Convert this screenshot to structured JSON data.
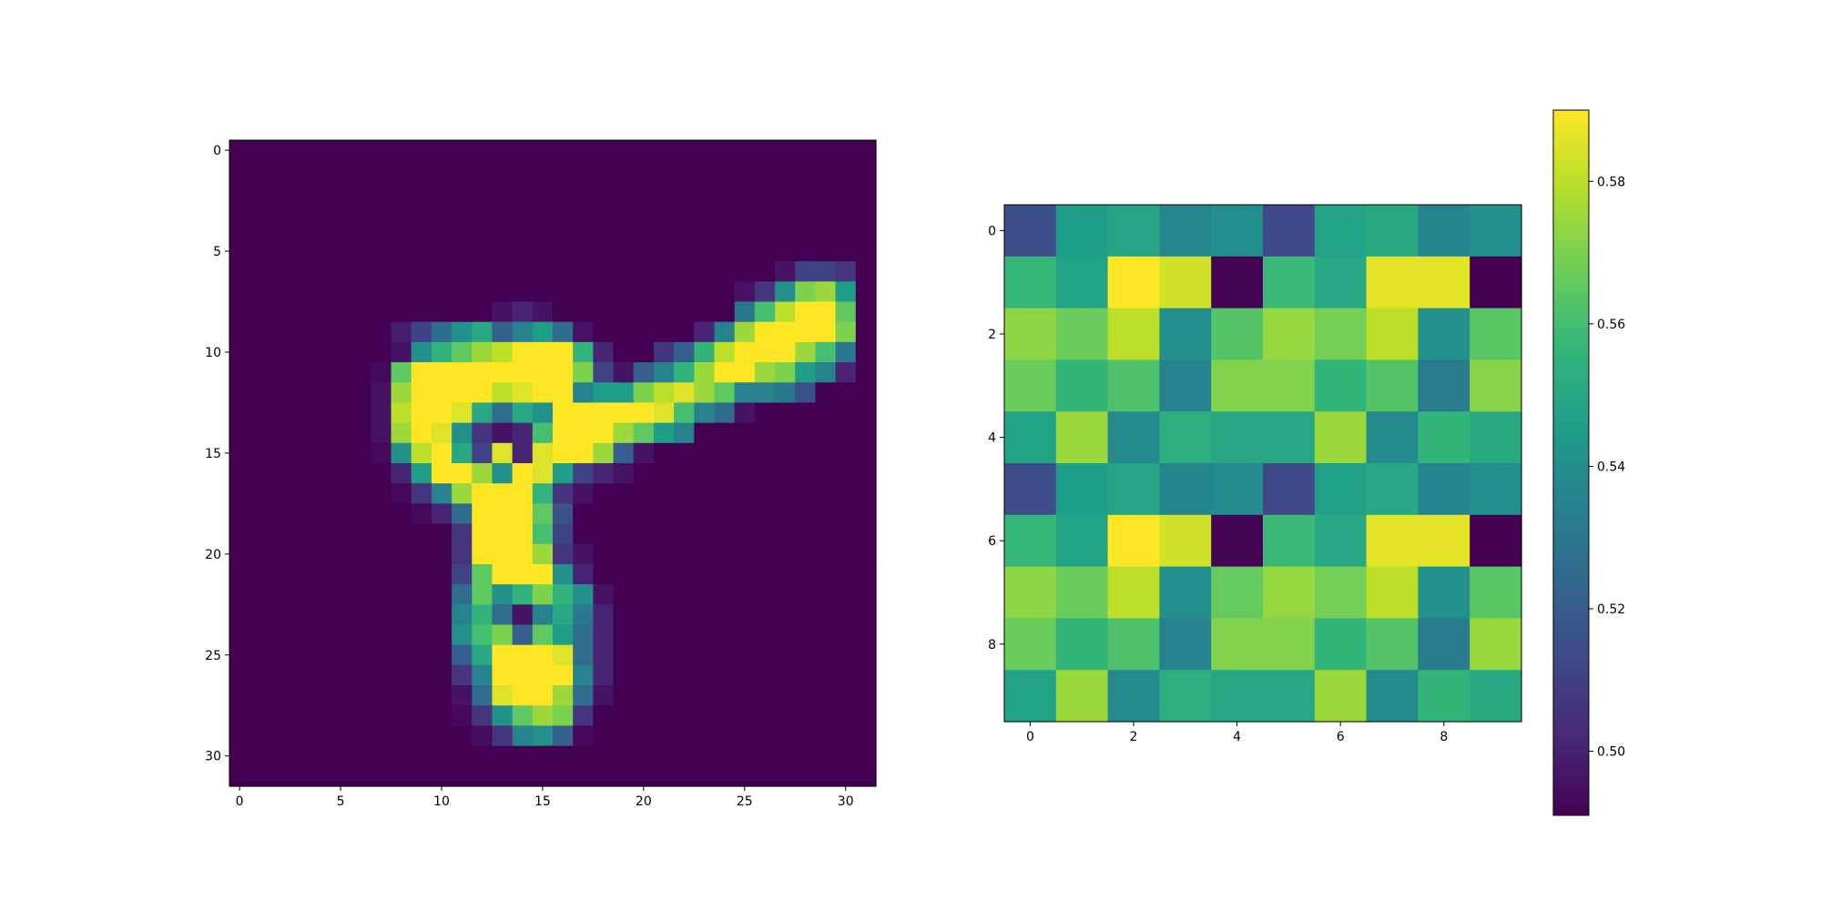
{
  "chart_data": [
    {
      "type": "heatmap",
      "title": "",
      "xlabel": "",
      "ylabel": "",
      "colormap": "viridis",
      "value_range": [
        0,
        1
      ],
      "rows": 32,
      "cols": 32,
      "x_ticks": [
        0,
        5,
        10,
        15,
        20,
        25,
        30
      ],
      "y_ticks": [
        0,
        5,
        10,
        15,
        20,
        25,
        30
      ],
      "x_tick_labels": [
        "0",
        "5",
        "10",
        "15",
        "20",
        "25",
        "30"
      ],
      "y_tick_labels": [
        "0",
        "5",
        "10",
        "15",
        "20",
        "25",
        "30"
      ],
      "values": [
        [
          0,
          0,
          0,
          0,
          0,
          0,
          0,
          0,
          0,
          0,
          0,
          0,
          0,
          0,
          0,
          0,
          0,
          0,
          0,
          0,
          0,
          0,
          0,
          0,
          0,
          0,
          0,
          0,
          0,
          0,
          0,
          0
        ],
        [
          0,
          0,
          0,
          0,
          0,
          0,
          0,
          0,
          0,
          0,
          0,
          0,
          0,
          0,
          0,
          0,
          0,
          0,
          0,
          0,
          0,
          0,
          0,
          0,
          0,
          0,
          0,
          0,
          0,
          0,
          0,
          0
        ],
        [
          0,
          0,
          0,
          0,
          0,
          0,
          0,
          0,
          0,
          0,
          0,
          0,
          0,
          0,
          0,
          0,
          0,
          0,
          0,
          0,
          0,
          0,
          0,
          0,
          0,
          0,
          0,
          0,
          0,
          0,
          0,
          0
        ],
        [
          0,
          0,
          0,
          0,
          0,
          0,
          0,
          0,
          0,
          0,
          0,
          0,
          0,
          0,
          0,
          0,
          0,
          0,
          0,
          0,
          0,
          0,
          0,
          0,
          0,
          0,
          0,
          0,
          0,
          0,
          0,
          0
        ],
        [
          0,
          0,
          0,
          0,
          0,
          0,
          0,
          0,
          0,
          0,
          0,
          0,
          0,
          0,
          0,
          0,
          0,
          0,
          0,
          0,
          0,
          0,
          0,
          0,
          0,
          0,
          0,
          0,
          0,
          0,
          0,
          0
        ],
        [
          0,
          0,
          0,
          0,
          0,
          0,
          0,
          0,
          0,
          0,
          0,
          0,
          0,
          0,
          0,
          0,
          0,
          0,
          0,
          0,
          0,
          0,
          0,
          0,
          0,
          0,
          0,
          0,
          0,
          0,
          0,
          0
        ],
        [
          0,
          0,
          0,
          0,
          0,
          0,
          0,
          0,
          0,
          0,
          0,
          0,
          0,
          0,
          0,
          0,
          0,
          0,
          0,
          0,
          0,
          0,
          0,
          0,
          0,
          0,
          0,
          0.05,
          0.2,
          0.2,
          0.15,
          0
        ],
        [
          0,
          0,
          0,
          0,
          0,
          0,
          0,
          0,
          0,
          0,
          0,
          0,
          0,
          0,
          0,
          0,
          0,
          0,
          0,
          0,
          0,
          0,
          0,
          0,
          0,
          0.05,
          0.15,
          0.5,
          0.8,
          0.85,
          0.55,
          0
        ],
        [
          0,
          0,
          0,
          0,
          0,
          0,
          0,
          0,
          0,
          0,
          0,
          0,
          0,
          0.05,
          0.1,
          0.05,
          0,
          0,
          0,
          0,
          0,
          0,
          0,
          0,
          0,
          0.4,
          0.7,
          0.9,
          1,
          1,
          0.75,
          0
        ],
        [
          0,
          0,
          0,
          0,
          0,
          0,
          0,
          0,
          0.08,
          0.2,
          0.35,
          0.5,
          0.6,
          0.3,
          0.45,
          0.55,
          0.35,
          0.05,
          0,
          0,
          0,
          0,
          0,
          0.1,
          0.45,
          0.85,
          1,
          1,
          1,
          1,
          0.8,
          0
        ],
        [
          0,
          0,
          0,
          0,
          0,
          0,
          0,
          0,
          0.05,
          0.5,
          0.65,
          0.75,
          0.85,
          0.9,
          1,
          1,
          1,
          0.65,
          0.1,
          0,
          0,
          0.15,
          0.3,
          0.65,
          0.9,
          1,
          1,
          1,
          0.85,
          0.7,
          0.4,
          0
        ],
        [
          0,
          0,
          0,
          0,
          0,
          0,
          0,
          0.02,
          0.75,
          1,
          1,
          1,
          1,
          1,
          1,
          1,
          1,
          0.8,
          0.2,
          0.05,
          0.3,
          0.45,
          0.65,
          0.85,
          1,
          1,
          0.85,
          0.8,
          0.55,
          0.45,
          0.1,
          0
        ],
        [
          0,
          0,
          0,
          0,
          0,
          0,
          0,
          0.05,
          0.85,
          1,
          1,
          1,
          1,
          0.9,
          0.95,
          1,
          1,
          0.45,
          0.55,
          0.55,
          0.8,
          0.9,
          0.95,
          0.85,
          0.75,
          0.45,
          0.45,
          0.4,
          0.25,
          0,
          0,
          0
        ],
        [
          0,
          0,
          0,
          0,
          0,
          0,
          0,
          0.05,
          0.9,
          1,
          1,
          0.95,
          0.6,
          0.35,
          0.6,
          0.5,
          1,
          1,
          1,
          1,
          1,
          0.95,
          0.7,
          0.45,
          0.35,
          0.05,
          0,
          0,
          0,
          0,
          0,
          0
        ],
        [
          0,
          0,
          0,
          0,
          0,
          0,
          0,
          0.05,
          0.85,
          1,
          0.95,
          0.5,
          0.15,
          0.05,
          0.1,
          0.7,
          1,
          1,
          1,
          0.85,
          0.75,
          0.55,
          0.45,
          0,
          0,
          0,
          0,
          0,
          0,
          0,
          0,
          0
        ],
        [
          0,
          0,
          0,
          0,
          0,
          0,
          0,
          0.02,
          0.5,
          0.9,
          1,
          0.6,
          0.2,
          0.95,
          0.1,
          0.95,
          1,
          1,
          0.85,
          0.3,
          0.05,
          0,
          0,
          0,
          0,
          0,
          0,
          0,
          0,
          0,
          0,
          0
        ],
        [
          0,
          0,
          0,
          0,
          0,
          0,
          0,
          0,
          0.1,
          0.55,
          1,
          1,
          0.85,
          0.5,
          1,
          0.95,
          0.55,
          0.2,
          0.1,
          0.05,
          0,
          0,
          0,
          0,
          0,
          0,
          0,
          0,
          0,
          0,
          0,
          0
        ],
        [
          0,
          0,
          0,
          0,
          0,
          0,
          0,
          0,
          0.02,
          0.15,
          0.45,
          0.85,
          1,
          1,
          1,
          0.65,
          0.15,
          0.05,
          0,
          0,
          0,
          0,
          0,
          0,
          0,
          0,
          0,
          0,
          0,
          0,
          0,
          0
        ],
        [
          0,
          0,
          0,
          0,
          0,
          0,
          0,
          0,
          0,
          0.02,
          0.1,
          0.35,
          1,
          1,
          1,
          0.75,
          0.25,
          0,
          0,
          0,
          0,
          0,
          0,
          0,
          0,
          0,
          0,
          0,
          0,
          0,
          0,
          0
        ],
        [
          0,
          0,
          0,
          0,
          0,
          0,
          0,
          0,
          0,
          0,
          0,
          0.15,
          1,
          1,
          1,
          0.7,
          0.2,
          0,
          0,
          0,
          0,
          0,
          0,
          0,
          0,
          0,
          0,
          0,
          0,
          0,
          0,
          0
        ],
        [
          0,
          0,
          0,
          0,
          0,
          0,
          0,
          0,
          0,
          0,
          0,
          0.15,
          1,
          1,
          1,
          0.85,
          0.15,
          0.05,
          0,
          0,
          0,
          0,
          0,
          0,
          0,
          0,
          0,
          0,
          0,
          0,
          0,
          0
        ],
        [
          0,
          0,
          0,
          0,
          0,
          0,
          0,
          0,
          0,
          0,
          0,
          0.2,
          0.75,
          1,
          1,
          1,
          0.5,
          0.1,
          0,
          0,
          0,
          0,
          0,
          0,
          0,
          0,
          0,
          0,
          0,
          0,
          0,
          0
        ],
        [
          0,
          0,
          0,
          0,
          0,
          0,
          0,
          0,
          0,
          0,
          0,
          0.35,
          0.75,
          0.5,
          0.65,
          0.8,
          0.65,
          0.5,
          0.05,
          0,
          0,
          0,
          0,
          0,
          0,
          0,
          0,
          0,
          0,
          0,
          0,
          0
        ],
        [
          0,
          0,
          0,
          0,
          0,
          0,
          0,
          0,
          0,
          0,
          0,
          0.45,
          0.65,
          0.35,
          0.05,
          0.45,
          0.6,
          0.4,
          0.1,
          0,
          0,
          0,
          0,
          0,
          0,
          0,
          0,
          0,
          0,
          0,
          0,
          0
        ],
        [
          0,
          0,
          0,
          0,
          0,
          0,
          0,
          0,
          0,
          0,
          0,
          0.5,
          0.7,
          0.8,
          0.3,
          0.75,
          0.55,
          0.35,
          0.1,
          0,
          0,
          0,
          0,
          0,
          0,
          0,
          0,
          0,
          0,
          0,
          0,
          0
        ],
        [
          0,
          0,
          0,
          0,
          0,
          0,
          0,
          0,
          0,
          0,
          0,
          0.3,
          0.6,
          1,
          1,
          1,
          0.95,
          0.35,
          0.1,
          0,
          0,
          0,
          0,
          0,
          0,
          0,
          0,
          0,
          0,
          0,
          0,
          0
        ],
        [
          0,
          0,
          0,
          0,
          0,
          0,
          0,
          0,
          0,
          0,
          0,
          0.15,
          0.45,
          1,
          1,
          1,
          1,
          0.45,
          0.1,
          0,
          0,
          0,
          0,
          0,
          0,
          0,
          0,
          0,
          0,
          0,
          0,
          0
        ],
        [
          0,
          0,
          0,
          0,
          0,
          0,
          0,
          0,
          0,
          0,
          0,
          0.05,
          0.35,
          0.95,
          1,
          1,
          0.85,
          0.35,
          0.05,
          0,
          0,
          0,
          0,
          0,
          0,
          0,
          0,
          0,
          0,
          0,
          0,
          0
        ],
        [
          0,
          0,
          0,
          0,
          0,
          0,
          0,
          0,
          0,
          0,
          0,
          0.02,
          0.15,
          0.5,
          0.75,
          0.85,
          0.8,
          0.15,
          0,
          0,
          0,
          0,
          0,
          0,
          0,
          0,
          0,
          0,
          0,
          0,
          0,
          0
        ],
        [
          0,
          0,
          0,
          0,
          0,
          0,
          0,
          0,
          0,
          0,
          0,
          0,
          0.03,
          0.15,
          0.45,
          0.5,
          0.3,
          0.02,
          0,
          0,
          0,
          0,
          0,
          0,
          0,
          0,
          0,
          0,
          0,
          0,
          0,
          0
        ],
        [
          0,
          0,
          0,
          0,
          0,
          0,
          0,
          0,
          0,
          0,
          0,
          0,
          0,
          0,
          0,
          0,
          0,
          0,
          0,
          0,
          0,
          0,
          0,
          0,
          0,
          0,
          0,
          0,
          0,
          0,
          0,
          0
        ],
        [
          0,
          0,
          0,
          0,
          0,
          0,
          0,
          0,
          0,
          0,
          0,
          0,
          0,
          0,
          0,
          0,
          0,
          0,
          0,
          0,
          0,
          0,
          0,
          0,
          0,
          0,
          0,
          0,
          0,
          0,
          0,
          0
        ]
      ]
    },
    {
      "type": "heatmap",
      "title": "",
      "xlabel": "",
      "ylabel": "",
      "colormap": "viridis",
      "value_range": [
        0.491,
        0.59
      ],
      "rows": 10,
      "cols": 10,
      "x_ticks": [
        0,
        2,
        4,
        6,
        8
      ],
      "y_ticks": [
        0,
        2,
        4,
        6,
        8
      ],
      "x_tick_labels": [
        "0",
        "2",
        "4",
        "6",
        "8"
      ],
      "y_tick_labels": [
        "0",
        "2",
        "4",
        "6",
        "8"
      ],
      "values": [
        [
          0.515,
          0.546,
          0.549,
          0.537,
          0.54,
          0.513,
          0.548,
          0.551,
          0.536,
          0.541
        ],
        [
          0.557,
          0.548,
          0.59,
          0.583,
          0.492,
          0.558,
          0.55,
          0.586,
          0.586,
          0.491
        ],
        [
          0.573,
          0.567,
          0.58,
          0.54,
          0.563,
          0.574,
          0.569,
          0.58,
          0.541,
          0.564
        ],
        [
          0.567,
          0.556,
          0.562,
          0.535,
          0.571,
          0.571,
          0.556,
          0.563,
          0.532,
          0.572
        ],
        [
          0.548,
          0.575,
          0.538,
          0.553,
          0.55,
          0.55,
          0.575,
          0.538,
          0.556,
          0.551
        ],
        [
          0.515,
          0.546,
          0.549,
          0.536,
          0.538,
          0.513,
          0.547,
          0.55,
          0.536,
          0.54
        ],
        [
          0.557,
          0.548,
          0.59,
          0.583,
          0.492,
          0.558,
          0.55,
          0.586,
          0.586,
          0.491
        ],
        [
          0.573,
          0.567,
          0.58,
          0.54,
          0.566,
          0.574,
          0.569,
          0.58,
          0.541,
          0.564
        ],
        [
          0.567,
          0.556,
          0.562,
          0.535,
          0.571,
          0.571,
          0.556,
          0.563,
          0.532,
          0.575
        ],
        [
          0.548,
          0.575,
          0.538,
          0.553,
          0.55,
          0.55,
          0.575,
          0.538,
          0.556,
          0.551
        ]
      ]
    }
  ],
  "colorbar": {
    "ticks": [
      0.5,
      0.52,
      0.54,
      0.56,
      0.58
    ],
    "tick_labels": [
      "0.50",
      "0.52",
      "0.54",
      "0.56",
      "0.58"
    ],
    "range": [
      0.491,
      0.59
    ]
  }
}
